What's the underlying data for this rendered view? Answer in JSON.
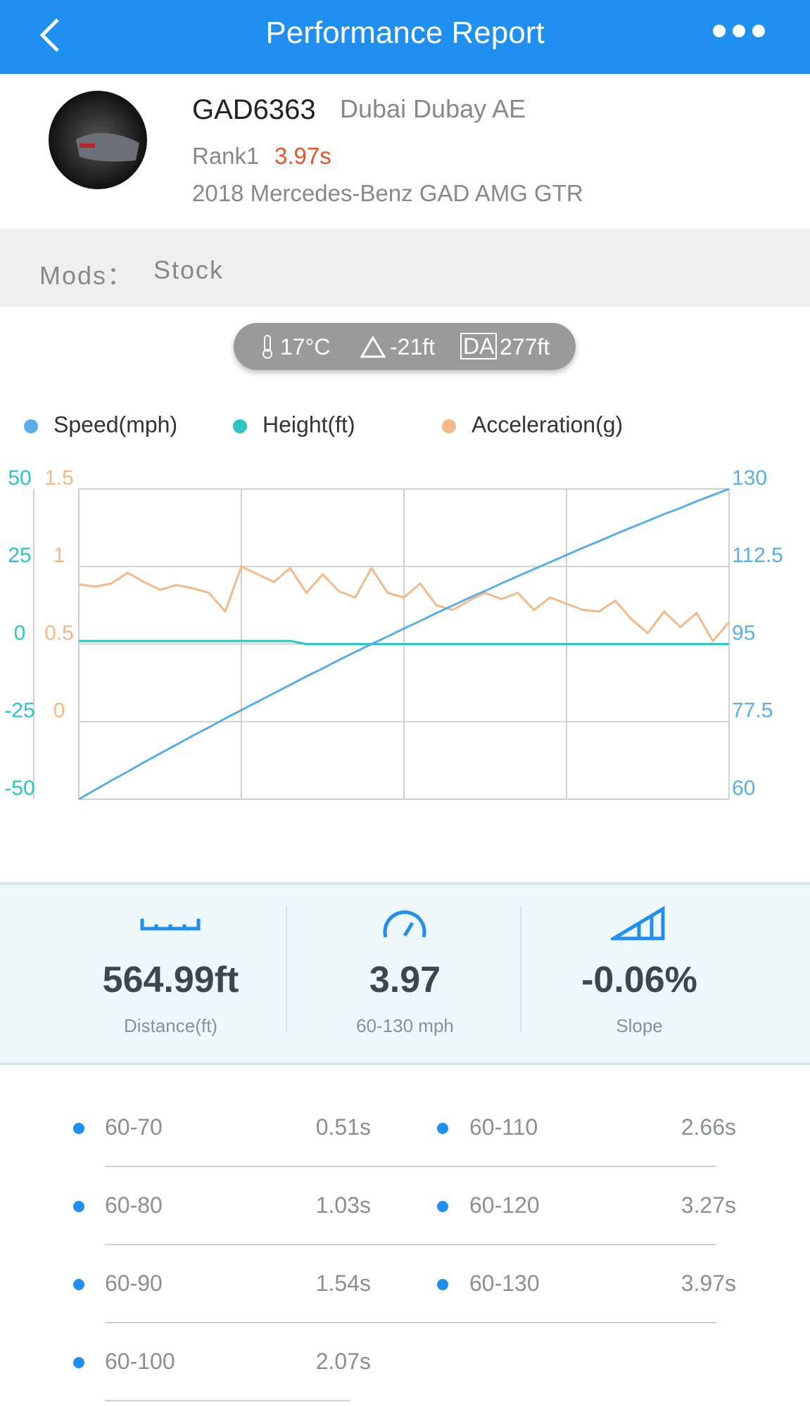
{
  "header": {
    "title": "Performance Report"
  },
  "profile": {
    "plate": "GAD6363",
    "location": "Dubai Dubay AE",
    "rank_label": "Rank1",
    "rank_time": "3.97s",
    "car": "2018 Mercedes-Benz GAD AMG GTR"
  },
  "mods": {
    "label": "Mods：",
    "value": "Stock"
  },
  "conditions": {
    "temperature": "17°C",
    "altitude": "-21ft",
    "da_label": "DA",
    "da_value": "277ft"
  },
  "chart_data": {
    "type": "line",
    "series": [
      {
        "name": "Speed(mph)",
        "color": "#5aaee8",
        "axis": "y2",
        "values": [
          60,
          62.1,
          64.2,
          66.2,
          68.3,
          70.3,
          72.3,
          74.3,
          76.2,
          78.2,
          80.1,
          82.0,
          83.9,
          85.8,
          87.7,
          89.5,
          91.4,
          93.2,
          95.0,
          96.7,
          98.5,
          100.2,
          102.0,
          103.7,
          105.4,
          107.0,
          108.7,
          110.3,
          111.9,
          113.5,
          115.1,
          116.7,
          118.2,
          119.8,
          121.3,
          122.8,
          124.3,
          125.7,
          127.2,
          128.6,
          130
        ]
      },
      {
        "name": "Height(ft)",
        "color": "#2ec4c4",
        "axis": "y3",
        "values": [
          1,
          1,
          1,
          1,
          1,
          1,
          1,
          1,
          1,
          1,
          1,
          1,
          1,
          1,
          0,
          0,
          0,
          0,
          0,
          0,
          0,
          0,
          0,
          0,
          0,
          0,
          0,
          0,
          0,
          0,
          0,
          0,
          0,
          0,
          0,
          0,
          0,
          0,
          0,
          0,
          0
        ]
      },
      {
        "name": "Acceleration(g)",
        "color": "#f5b888",
        "axis": "y",
        "values": [
          0.885,
          0.87,
          0.89,
          0.96,
          0.9,
          0.85,
          0.88,
          0.86,
          0.83,
          0.71,
          1.0,
          0.95,
          0.9,
          0.99,
          0.83,
          0.95,
          0.84,
          0.8,
          0.99,
          0.83,
          0.8,
          0.89,
          0.75,
          0.72,
          0.78,
          0.83,
          0.79,
          0.83,
          0.72,
          0.8,
          0.76,
          0.72,
          0.71,
          0.78,
          0.66,
          0.57,
          0.71,
          0.61,
          0.7,
          0.52,
          0.64
        ]
      }
    ],
    "ylim": [
      -0.5,
      1.5
    ],
    "yticks": [
      0,
      0.5,
      1,
      1.5
    ],
    "y2lim": [
      60,
      130
    ],
    "y2ticks": [
      60,
      77.5,
      95,
      112.5,
      130
    ],
    "y3lim": [
      -50,
      50
    ],
    "y3ticks": [
      -50,
      -25,
      0,
      25,
      50
    ],
    "grid": true
  },
  "stats": [
    {
      "value": "564.99ft",
      "label": "Distance(ft)"
    },
    {
      "value": "3.97",
      "label": "60-130 mph"
    },
    {
      "value": "-0.06%",
      "label": "Slope"
    }
  ],
  "splits": [
    [
      "60-70",
      "0.51s"
    ],
    [
      "60-80",
      "1.03s"
    ],
    [
      "60-90",
      "1.54s"
    ],
    [
      "60-100",
      "2.07s"
    ],
    [
      "60-110",
      "2.66s"
    ],
    [
      "60-120",
      "3.27s"
    ],
    [
      "60-130",
      "3.97s"
    ]
  ]
}
